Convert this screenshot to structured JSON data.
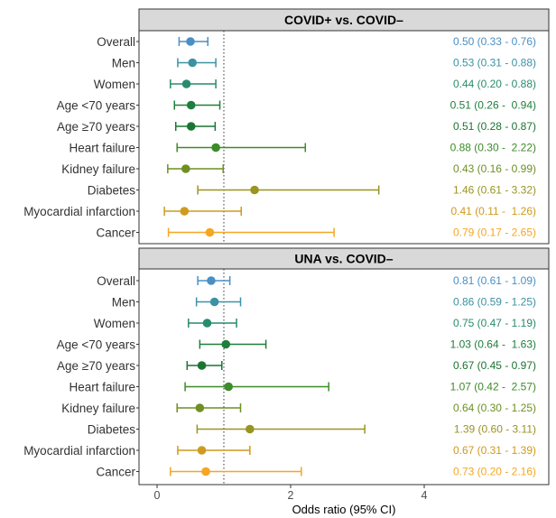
{
  "chart_data": {
    "type": "forest",
    "xlabel": "Odds ratio (95% CI)",
    "xlim": [
      -0.2,
      5.7
    ],
    "xticks": [
      0,
      2,
      4
    ],
    "reference_line": 1,
    "row_colors": [
      "#4a8fc4",
      "#3c92a4",
      "#2a8a6e",
      "#1e7f3c",
      "#1a7530",
      "#3c8c28",
      "#6f8f22",
      "#9a9420",
      "#cf9a1e",
      "#f5a623"
    ],
    "panels": [
      {
        "title": "COVID+ vs. COVID–",
        "rows": [
          {
            "label": "Overall",
            "or": 0.5,
            "low": 0.33,
            "high": 0.76,
            "ci_text": "0.50 (0.33 - 0.76)"
          },
          {
            "label": "Men",
            "or": 0.53,
            "low": 0.31,
            "high": 0.88,
            "ci_text": "0.53 (0.31 - 0.88)"
          },
          {
            "label": "Women",
            "or": 0.44,
            "low": 0.2,
            "high": 0.88,
            "ci_text": "0.44 (0.20 - 0.88)"
          },
          {
            "label": "Age <70 years",
            "or": 0.51,
            "low": 0.26,
            "high": 0.94,
            "ci_text": "0.51 (0.26 -  0.94)"
          },
          {
            "label": "Age ≥70 years",
            "or": 0.51,
            "low": 0.28,
            "high": 0.87,
            "ci_text": "0.51 (0.28 - 0.87)"
          },
          {
            "label": "Heart failure",
            "or": 0.88,
            "low": 0.3,
            "high": 2.22,
            "ci_text": "0.88 (0.30 -  2.22)"
          },
          {
            "label": "Kidney failure",
            "or": 0.43,
            "low": 0.16,
            "high": 0.99,
            "ci_text": "0.43 (0.16 - 0.99)"
          },
          {
            "label": "Diabetes",
            "or": 1.46,
            "low": 0.61,
            "high": 3.32,
            "ci_text": "1.46 (0.61 - 3.32)"
          },
          {
            "label": "Myocardial infarction",
            "or": 0.41,
            "low": 0.11,
            "high": 1.26,
            "ci_text": "0.41 (0.11 -  1.26)"
          },
          {
            "label": "Cancer",
            "or": 0.79,
            "low": 0.17,
            "high": 2.65,
            "ci_text": "0.79 (0.17 - 2.65)"
          }
        ]
      },
      {
        "title": "UNA vs. COVID–",
        "rows": [
          {
            "label": "Overall",
            "or": 0.81,
            "low": 0.61,
            "high": 1.09,
            "ci_text": "0.81 (0.61 - 1.09)"
          },
          {
            "label": "Men",
            "or": 0.86,
            "low": 0.59,
            "high": 1.25,
            "ci_text": "0.86 (0.59 - 1.25)"
          },
          {
            "label": "Women",
            "or": 0.75,
            "low": 0.47,
            "high": 1.19,
            "ci_text": "0.75 (0.47 - 1.19)"
          },
          {
            "label": "Age <70 years",
            "or": 1.03,
            "low": 0.64,
            "high": 1.63,
            "ci_text": "1.03 (0.64 -  1.63)"
          },
          {
            "label": "Age ≥70 years",
            "or": 0.67,
            "low": 0.45,
            "high": 0.97,
            "ci_text": "0.67 (0.45 - 0.97)"
          },
          {
            "label": "Heart failure",
            "or": 1.07,
            "low": 0.42,
            "high": 2.57,
            "ci_text": "1.07 (0.42 -  2.57)"
          },
          {
            "label": "Kidney failure",
            "or": 0.64,
            "low": 0.3,
            "high": 1.25,
            "ci_text": "0.64 (0.30 - 1.25)"
          },
          {
            "label": "Diabetes",
            "or": 1.39,
            "low": 0.6,
            "high": 3.11,
            "ci_text": "1.39 (0.60 - 3.11)"
          },
          {
            "label": "Myocardial infarction",
            "or": 0.67,
            "low": 0.31,
            "high": 1.39,
            "ci_text": "0.67 (0.31 - 1.39)"
          },
          {
            "label": "Cancer",
            "or": 0.73,
            "low": 0.2,
            "high": 2.16,
            "ci_text": "0.73 (0.20 - 2.16)"
          }
        ]
      }
    ]
  }
}
